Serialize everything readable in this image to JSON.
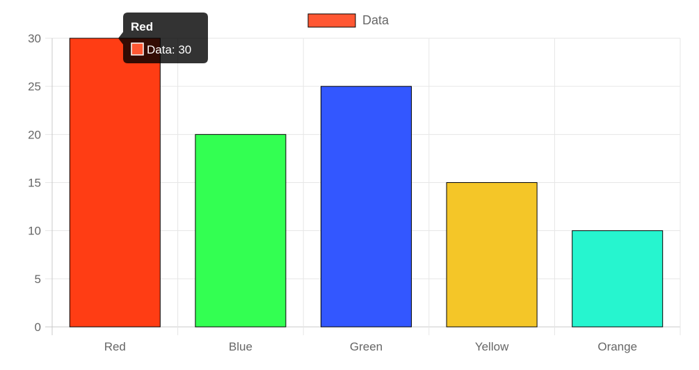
{
  "chart_data": {
    "type": "bar",
    "categories": [
      "Red",
      "Blue",
      "Green",
      "Yellow",
      "Orange"
    ],
    "series": [
      {
        "name": "Data",
        "values": [
          30,
          20,
          25,
          15,
          10
        ],
        "colors": [
          "#ff3d14",
          "#33ff52",
          "#3357ff",
          "#f4c628",
          "#26f5cf"
        ]
      }
    ],
    "ylim": [
      0,
      30
    ],
    "y_ticks": [
      "0",
      "5",
      "10",
      "15",
      "20",
      "25",
      "30"
    ],
    "grid": true,
    "legend_position": "top-center",
    "legend_color": "#ff5733",
    "bar_border_color": "#000000",
    "tooltip": {
      "title": "Red",
      "body": "Data: 30",
      "swatch_color": "#ff5733"
    }
  }
}
